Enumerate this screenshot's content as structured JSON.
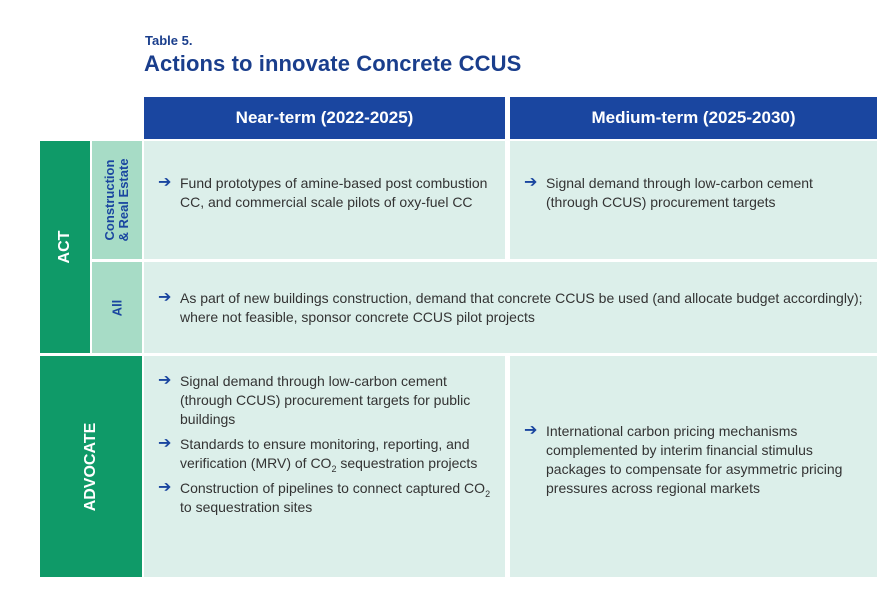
{
  "caption": "Table 5.",
  "title": "Actions to innovate Concrete CCUS",
  "columns": {
    "near": "Near-term (2022-2025)",
    "medium": "Medium-term (2025-2030)"
  },
  "groups": {
    "act": {
      "label": "ACT",
      "rows": {
        "construction": {
          "label_line1": "Construction",
          "label_line2": "& Real Estate",
          "near": [
            "Fund prototypes of amine-based post combustion CC, and commercial scale pilots of oxy-fuel CC"
          ],
          "medium": [
            "Signal demand through low-carbon cement (through CCUS) procurement targets"
          ]
        },
        "all": {
          "label": "All",
          "span": [
            "As part of new buildings construction, demand that concrete CCUS be used (and allocate budget accordingly); where not feasible, sponsor concrete CCUS pilot projects"
          ]
        }
      }
    },
    "advocate": {
      "label": "ADVOCATE",
      "near": {
        "b1": "Signal demand through low-carbon cement (through CCUS) procurement targets for public buildings",
        "b2_pre": "Standards to ensure monitoring, reporting, and verification (MRV) of CO",
        "b2_sub": "2",
        "b2_post": " sequestration projects",
        "b3_pre": "Construction of pipelines to connect captured CO",
        "b3_sub": "2",
        "b3_post": " to sequestration sites"
      },
      "medium": [
        "International carbon pricing mechanisms complemented by interim financial stimulus packages to compensate for asymmetric pricing pressures across regional markets"
      ]
    }
  },
  "arrow_glyph": "➔",
  "colors": {
    "navy": "#1a46a0",
    "green": "#0f9a68",
    "light_green": "#a7dcc6",
    "cell_bg": "#dcefea"
  }
}
